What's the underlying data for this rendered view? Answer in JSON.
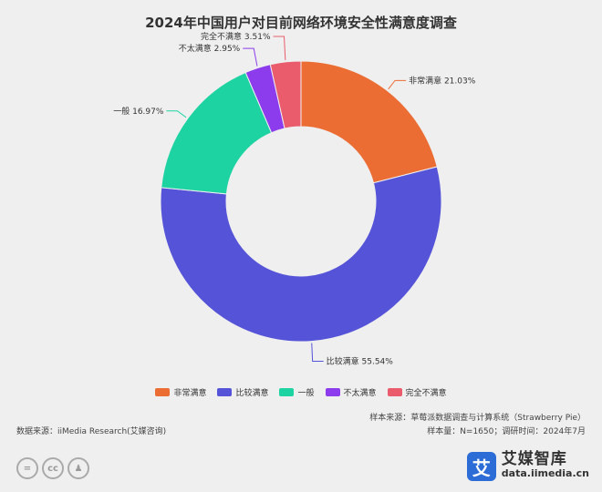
{
  "chart_data": {
    "type": "pie",
    "donut": true,
    "title": "2024年中国用户对目前网络环境安全性满意度调查",
    "slices": [
      {
        "label": "非常满意",
        "value": 21.03,
        "display": "非常满意 21.03%",
        "color": "#ec6d34"
      },
      {
        "label": "比较满意",
        "value": 55.54,
        "display": "比较满意 55.54%",
        "color": "#5554d8"
      },
      {
        "label": "一般",
        "value": 16.97,
        "display": "一般 16.97%",
        "color": "#1ed3a2"
      },
      {
        "label": "不太满意",
        "value": 2.95,
        "display": "不太满意 2.95%",
        "color": "#8c3cec"
      },
      {
        "label": "完全不满意",
        "value": 3.51,
        "display": "完全不满意 3.51%",
        "color": "#ea5c6b"
      }
    ],
    "legend_position": "bottom"
  },
  "footer": {
    "source": "数据来源：iiMedia Research(艾媒咨询)",
    "sample_source": "样本来源：草莓派数据调查与计算系统（Strawberry Pie）",
    "sample_info": "样本量：N=1650；调研时间：2024年7月"
  },
  "brand": {
    "logo_char": "艾",
    "name": "艾媒智库",
    "url": "data.iimedia.cn"
  },
  "license_icons": [
    "equals-icon",
    "cc-icon",
    "person-icon"
  ]
}
